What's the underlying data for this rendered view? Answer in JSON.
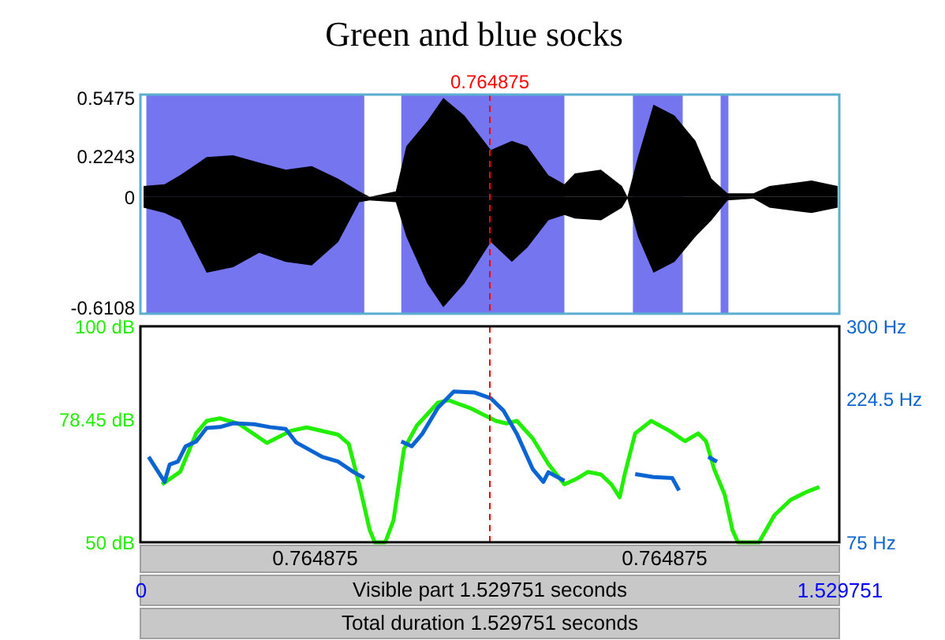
{
  "chart_data": [
    {
      "type": "area",
      "title": "Green and blue socks",
      "x": [
        0.007,
        0.053,
        0.087,
        0.145,
        0.203,
        0.26,
        0.318,
        0.375,
        0.433,
        0.479,
        0.502,
        0.559,
        0.582,
        0.628,
        0.663,
        0.709,
        0.767,
        0.813,
        0.847,
        0.893,
        0.928,
        0.951,
        1.008,
        1.054,
        1.066,
        1.089,
        1.123,
        1.169,
        1.215,
        1.25,
        1.285,
        1.342,
        1.377,
        1.469,
        1.526
      ],
      "series": [
        {
          "color": "#000000",
          "values": [
            0.06,
            0.07,
            0.12,
            0.22,
            0.23,
            0.19,
            0.15,
            0.17,
            0.1,
            0.03,
            0,
            0.03,
            0.28,
            0.42,
            0.5475,
            0.45,
            0.26,
            0.31,
            0.28,
            0.12,
            0.07,
            0.13,
            0.15,
            0.06,
            0,
            0.22,
            0.51,
            0.45,
            0.31,
            0.1,
            0.02,
            0.02,
            0.06,
            0.09,
            0.06
          ]
        },
        {
          "color": "#000000",
          "values": [
            -0.06,
            -0.09,
            -0.13,
            -0.42,
            -0.39,
            -0.31,
            -0.36,
            -0.38,
            -0.25,
            -0.03,
            -0.02,
            -0.03,
            -0.22,
            -0.48,
            -0.6108,
            -0.48,
            -0.25,
            -0.36,
            -0.28,
            -0.13,
            -0.1,
            -0.12,
            -0.13,
            -0.06,
            -0.01,
            -0.22,
            -0.42,
            -0.36,
            -0.22,
            -0.13,
            -0.02,
            -0.01,
            -0.06,
            -0.09,
            -0.06
          ]
        }
      ],
      "bands": [
        {
          "axis": "x",
          "from": 0.013,
          "to": 0.49,
          "color": "#6666ee"
        },
        {
          "axis": "x",
          "from": 0.571,
          "to": 0.928,
          "color": "#6666ee"
        },
        {
          "axis": "x",
          "from": 1.078,
          "to": 1.187,
          "color": "#6666ee"
        },
        {
          "axis": "x",
          "from": 1.27,
          "to": 1.287,
          "color": "#6666ee"
        }
      ],
      "ref_lines": [
        {
          "axis": "x",
          "value": 0.764875,
          "label": "0.764875",
          "color": "#ff0000",
          "line_style": "dashed"
        }
      ],
      "xlim": [
        0,
        1.529751
      ],
      "ylim": [
        -0.647,
        0.566
      ],
      "yticks": [
        0.5475,
        0.2243,
        0,
        -0.6108
      ],
      "tick_labels": "y",
      "grid": false,
      "legend": false
    },
    {
      "type": "line",
      "xlabel": "Visible part 1.529751 seconds",
      "series": [
        {
          "color": "#22ee00",
          "x": [
            0.047,
            0.087,
            0.122,
            0.145,
            0.174,
            0.214,
            0.277,
            0.329,
            0.364,
            0.433,
            0.456,
            0.479,
            0.502,
            0.513,
            0.536,
            0.554,
            0.577,
            0.605,
            0.651,
            0.674,
            0.721,
            0.778,
            0.801,
            0.824,
            0.859,
            0.893,
            0.928,
            0.951,
            0.98,
            1.008,
            1.031,
            1.049,
            1.06,
            1.083,
            1.118,
            1.158,
            1.192,
            1.221,
            1.238,
            1.256,
            1.279,
            1.296,
            1.308,
            1.354,
            1.388,
            1.423,
            1.457,
            1.486
          ],
          "values": [
            63.4,
            66.3,
            75.2,
            78.1,
            78.7,
            77.5,
            73.0,
            75.8,
            76.6,
            74.9,
            72.8,
            63.4,
            52.8,
            50,
            50,
            55.1,
            71.6,
            77.0,
            82.3,
            82.9,
            81.1,
            78.1,
            77.5,
            78.1,
            74.0,
            68.1,
            63.4,
            64.5,
            66.3,
            65.7,
            63.4,
            60.4,
            65.7,
            75.2,
            78.1,
            75.8,
            73.4,
            75.2,
            73.4,
            66.9,
            61.0,
            52.8,
            50,
            50,
            56.3,
            59.8,
            61.6,
            62.8
          ]
        },
        {
          "color": "#0a64d2",
          "axis": "y2",
          "x": [
            0.018,
            0.053,
            0.064,
            0.082,
            0.099,
            0.122,
            0.145,
            0.174,
            0.203,
            0.249,
            0.283,
            0.318,
            0.341,
            0.398,
            0.433,
            0.467,
            0.49,
            0.53,
            0.571,
            0.594,
            0.617,
            0.651,
            0.686,
            0.732,
            0.767,
            0.795,
            0.824,
            0.859,
            0.882,
            0.893,
            0.928,
            1.0,
            1.083,
            1.123,
            1.164,
            1.179,
            1.22,
            1.243,
            1.262
          ],
          "values": [
            164,
            138,
            156,
            159,
            175,
            180,
            194,
            195,
            199,
            198,
            195,
            193,
            179,
            164,
            159,
            148,
            142,
            null,
            180,
            175,
            188,
            215,
            232,
            231,
            225,
            212,
            188,
            151,
            138,
            148,
            139,
            null,
            146,
            143,
            142,
            129,
            null,
            164,
            159
          ]
        }
      ],
      "ref_lines": [
        {
          "axis": "x",
          "value": 0.764875,
          "color": "#ff0000",
          "line_style": "dashed"
        }
      ],
      "xlim": [
        0,
        1.529751
      ],
      "xticks": [
        0,
        1.529751
      ],
      "ylim": [
        50,
        100
      ],
      "yticks": [
        {
          "value": 100,
          "label": "100 dB"
        },
        {
          "value": 78.45,
          "label": "78.45 dB"
        },
        {
          "value": 50,
          "label": "50 dB"
        }
      ],
      "y2lim": [
        75,
        300
      ],
      "y2ticks": [
        {
          "value": 300,
          "label": "300 Hz"
        },
        {
          "value": 224.5,
          "label": "224.5 Hz"
        },
        {
          "value": 75,
          "label": "75 Hz"
        }
      ],
      "annotations": [
        "0.764875",
        "0.764875",
        "Total duration 1.529751 seconds"
      ],
      "grid": false,
      "legend": false,
      "marker": "none",
      "line_style": "solid"
    }
  ]
}
